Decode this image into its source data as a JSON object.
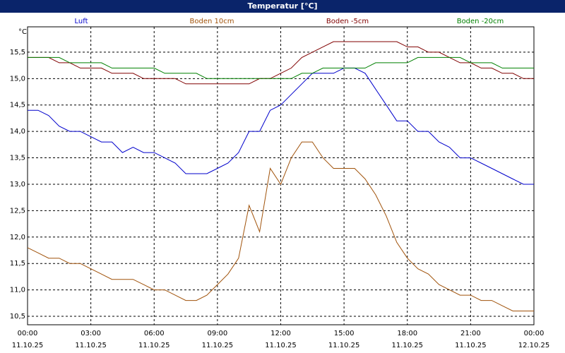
{
  "chart_data": {
    "type": "line",
    "title": "Temperatur [°C]",
    "y_unit": "°C",
    "x": [
      0,
      0.5,
      1,
      1.5,
      2,
      2.5,
      3,
      3.5,
      4,
      4.5,
      5,
      5.5,
      6,
      6.5,
      7,
      7.5,
      8,
      8.5,
      9,
      9.5,
      10,
      10.5,
      11,
      11.5,
      12,
      12.5,
      13,
      13.5,
      14,
      14.5,
      15,
      15.5,
      16,
      16.5,
      17,
      17.5,
      18,
      18.5,
      19,
      19.5,
      20,
      20.5,
      21,
      21.5,
      22,
      22.5,
      23,
      23.5,
      24
    ],
    "series": [
      {
        "name": "Luft",
        "color": "#0000cc",
        "values": [
          14.4,
          14.4,
          14.3,
          14.1,
          14.0,
          14.0,
          13.9,
          13.8,
          13.8,
          13.6,
          13.7,
          13.6,
          13.6,
          13.5,
          13.4,
          13.2,
          13.2,
          13.2,
          13.3,
          13.4,
          13.6,
          14.0,
          14.0,
          14.4,
          14.5,
          14.7,
          14.9,
          15.1,
          15.1,
          15.1,
          15.2,
          15.2,
          15.1,
          14.8,
          14.5,
          14.2,
          14.2,
          14.0,
          14.0,
          13.8,
          13.7,
          13.5,
          13.5,
          13.4,
          13.3,
          13.2,
          13.1,
          13.0,
          13.0
        ]
      },
      {
        "name": "Boden 10cm",
        "color": "#a0520a",
        "values": [
          11.8,
          11.7,
          11.6,
          11.6,
          11.5,
          11.5,
          11.4,
          11.3,
          11.2,
          11.2,
          11.2,
          11.1,
          11.0,
          11.0,
          10.9,
          10.8,
          10.8,
          10.9,
          11.1,
          11.3,
          11.6,
          12.6,
          12.1,
          13.3,
          13.0,
          13.5,
          13.8,
          13.8,
          13.5,
          13.3,
          13.3,
          13.3,
          13.1,
          12.8,
          12.4,
          11.9,
          11.6,
          11.4,
          11.3,
          11.1,
          11.0,
          10.9,
          10.9,
          10.8,
          10.8,
          10.7,
          10.6,
          10.6,
          10.6
        ]
      },
      {
        "name": "Boden -5cm",
        "color": "#800000",
        "values": [
          15.4,
          15.4,
          15.4,
          15.3,
          15.3,
          15.2,
          15.2,
          15.2,
          15.1,
          15.1,
          15.1,
          15.0,
          15.0,
          15.0,
          15.0,
          14.9,
          14.9,
          14.9,
          14.9,
          14.9,
          14.9,
          14.9,
          15.0,
          15.0,
          15.1,
          15.2,
          15.4,
          15.5,
          15.6,
          15.7,
          15.7,
          15.7,
          15.7,
          15.7,
          15.7,
          15.7,
          15.6,
          15.6,
          15.5,
          15.5,
          15.4,
          15.3,
          15.3,
          15.2,
          15.2,
          15.1,
          15.1,
          15.0,
          15.0
        ]
      },
      {
        "name": "Boden -20cm",
        "color": "#008000",
        "values": [
          15.4,
          15.4,
          15.4,
          15.4,
          15.3,
          15.3,
          15.3,
          15.3,
          15.2,
          15.2,
          15.2,
          15.2,
          15.2,
          15.1,
          15.1,
          15.1,
          15.1,
          15.0,
          15.0,
          15.0,
          15.0,
          15.0,
          15.0,
          15.0,
          15.0,
          15.0,
          15.1,
          15.1,
          15.2,
          15.2,
          15.2,
          15.2,
          15.2,
          15.3,
          15.3,
          15.3,
          15.3,
          15.4,
          15.4,
          15.4,
          15.4,
          15.4,
          15.3,
          15.3,
          15.3,
          15.2,
          15.2,
          15.2,
          15.2
        ]
      }
    ],
    "xlim": [
      0,
      24
    ],
    "xticks": [
      {
        "value": 0,
        "label": "00:00\n11.10.25"
      },
      {
        "value": 3,
        "label": "03:00\n11.10.25"
      },
      {
        "value": 6,
        "label": "06:00\n11.10.25"
      },
      {
        "value": 9,
        "label": "09:00\n11.10.25"
      },
      {
        "value": 12,
        "label": "12:00\n11.10.25"
      },
      {
        "value": 15,
        "label": "15:00\n11.10.25"
      },
      {
        "value": 18,
        "label": "18:00\n11.10.25"
      },
      {
        "value": 21,
        "label": "21:00\n11.10.25"
      },
      {
        "value": 24,
        "label": "00:00\n12.10.25"
      }
    ],
    "ylim": [
      10.34,
      15.98
    ],
    "yticks": [
      {
        "value": 10.5,
        "label": "10,5"
      },
      {
        "value": 11,
        "label": "11,0"
      },
      {
        "value": 11.5,
        "label": "11,5"
      },
      {
        "value": 12,
        "label": "12,0"
      },
      {
        "value": 12.5,
        "label": "12,5"
      },
      {
        "value": 13,
        "label": "13,0"
      },
      {
        "value": 13.5,
        "label": "13,5"
      },
      {
        "value": 14,
        "label": "14,0"
      },
      {
        "value": 14.5,
        "label": "14,5"
      },
      {
        "value": 15,
        "label": "15,0"
      },
      {
        "value": 15.5,
        "label": "15,5"
      }
    ],
    "grid": true
  }
}
